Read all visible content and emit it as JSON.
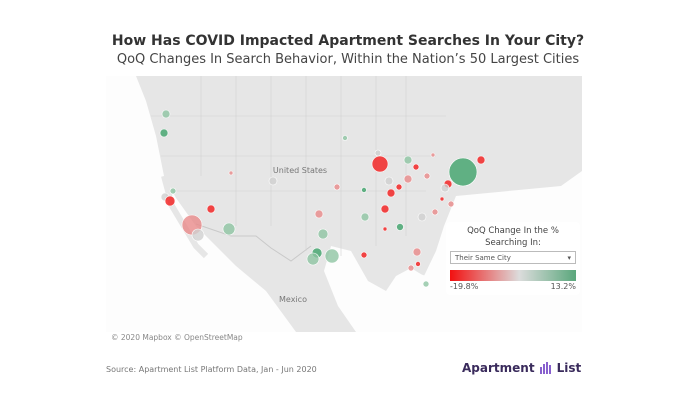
{
  "header": {
    "title": "How Has COVID Impacted Apartment Searches In Your City?",
    "subtitle": "QoQ Changes In Search Behavior, Within the Nation’s 50 Largest Cities"
  },
  "map": {
    "labels": {
      "us": "United States",
      "mexico": "Mexico"
    },
    "attribution": "© 2020 Mapbox  © OpenStreetMap"
  },
  "legend": {
    "title_line1": "QoQ Change In the %",
    "title_line2": "Searching In:",
    "selected_option": "Their Same City",
    "min_label": "-19.8%",
    "max_label": "13.2%",
    "colors": {
      "min": "#f21010",
      "mid": "#dcdcdc",
      "max": "#5aa77c"
    }
  },
  "footer": {
    "source": "Source: Apartment List Platform Data, Jan - Jun 2020",
    "logo_text_left": "Apartment",
    "logo_text_right": "List"
  }
}
